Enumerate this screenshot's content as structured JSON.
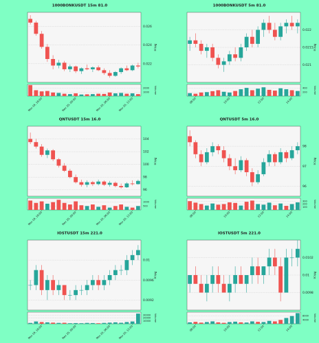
{
  "chart_data": [
    {
      "type": "candlestick",
      "title": "1000BONKUSDT 15m 81.0",
      "y_label": "Price",
      "volume_label": "Volume",
      "up_color": "#26a69a",
      "down_color": "#ef5350",
      "grid": true,
      "categories": [
        null,
        null,
        "Nov 19, 18:00",
        null,
        null,
        null,
        null,
        null,
        "Nov 20, 00:00",
        null,
        null,
        null,
        null,
        null,
        "Nov 20, 06:00",
        null,
        null,
        null,
        "Nov 20, 12:00",
        null
      ],
      "open": [
        0.0268,
        0.0264,
        0.0252,
        0.0238,
        0.0225,
        0.0218,
        0.0221,
        0.0214,
        0.0217,
        0.0212,
        0.0215,
        0.0214,
        0.0216,
        0.0213,
        0.021,
        0.0207,
        0.0211,
        0.0215,
        0.0213,
        0.0218
      ],
      "high": [
        0.0272,
        0.0266,
        0.0255,
        0.0241,
        0.0229,
        0.0224,
        0.0223,
        0.0219,
        0.0218,
        0.0216,
        0.0219,
        0.0217,
        0.0218,
        0.0215,
        0.0213,
        0.0212,
        0.0216,
        0.0218,
        0.0219,
        0.0221
      ],
      "low": [
        0.0262,
        0.025,
        0.0236,
        0.0222,
        0.0214,
        0.0215,
        0.0212,
        0.0211,
        0.021,
        0.0209,
        0.0213,
        0.0211,
        0.0212,
        0.0208,
        0.0205,
        0.0206,
        0.0209,
        0.0212,
        0.0212,
        0.0215
      ],
      "close": [
        0.0264,
        0.0252,
        0.0238,
        0.0225,
        0.0218,
        0.0221,
        0.0214,
        0.0217,
        0.0212,
        0.0215,
        0.0214,
        0.0216,
        0.0213,
        0.021,
        0.0207,
        0.0211,
        0.0215,
        0.0213,
        0.0218,
        0.0217
      ],
      "volume": [
        2800,
        1500,
        1200,
        1300,
        900,
        800,
        600,
        500,
        700,
        400,
        450,
        500,
        600,
        550,
        900,
        700,
        800,
        600,
        700,
        500
      ],
      "ylim": [
        0.02,
        0.0275
      ],
      "yticks": [
        0.022,
        0.024,
        0.026
      ],
      "volume_ylim": [
        0,
        3000
      ],
      "volume_yticks": [
        1000,
        2000
      ]
    },
    {
      "type": "candlestick",
      "title": "1000BONKUSDT 5m 81.0",
      "y_label": "Price",
      "volume_label": "Volume",
      "up_color": "#26a69a",
      "down_color": "#ef5350",
      "grid": true,
      "categories": [
        null,
        "08:00",
        null,
        null,
        null,
        null,
        null,
        "10:00",
        null,
        null,
        null,
        null,
        null,
        "12:00",
        null,
        null,
        null,
        null,
        "14:00",
        null
      ],
      "open": [
        0.0216,
        0.0217,
        0.0216,
        0.0214,
        0.0215,
        0.0212,
        0.021,
        0.0211,
        0.0213,
        0.0212,
        0.0215,
        0.0218,
        0.0216,
        0.022,
        0.0222,
        0.022,
        0.0218,
        0.0221,
        0.0222,
        0.0221
      ],
      "high": [
        0.0218,
        0.0219,
        0.0217,
        0.0216,
        0.0216,
        0.0213,
        0.0212,
        0.0214,
        0.0215,
        0.0216,
        0.0219,
        0.022,
        0.0221,
        0.0223,
        0.0224,
        0.0222,
        0.0222,
        0.0223,
        0.0224,
        0.0223
      ],
      "low": [
        0.0214,
        0.0215,
        0.0213,
        0.0212,
        0.0211,
        0.0209,
        0.0208,
        0.021,
        0.0211,
        0.0211,
        0.0214,
        0.0215,
        0.0215,
        0.0218,
        0.0219,
        0.0217,
        0.0217,
        0.0219,
        0.022,
        0.0219
      ],
      "close": [
        0.0217,
        0.0216,
        0.0214,
        0.0215,
        0.0212,
        0.021,
        0.0211,
        0.0213,
        0.0212,
        0.0215,
        0.0218,
        0.0216,
        0.022,
        0.0222,
        0.022,
        0.0218,
        0.0221,
        0.0222,
        0.0221,
        0.0222
      ],
      "volume": [
        150,
        120,
        180,
        200,
        250,
        300,
        220,
        180,
        260,
        350,
        420,
        300,
        380,
        450,
        320,
        280,
        400,
        350,
        300,
        260
      ],
      "ylim": [
        0.0205,
        0.0225
      ],
      "yticks": [
        0.021,
        0.0215,
        0.022
      ],
      "volume_ylim": [
        0,
        600
      ],
      "volume_yticks": [
        200,
        400
      ]
    },
    {
      "type": "candlestick",
      "title": "QNTUSDT 15m 16.0",
      "y_label": "Price",
      "volume_label": "Volume",
      "up_color": "#26a69a",
      "down_color": "#ef5350",
      "grid": true,
      "categories": [
        null,
        null,
        "Nov 19, 18:00",
        null,
        null,
        null,
        null,
        null,
        "Nov 20, 00:00",
        null,
        null,
        null,
        null,
        null,
        "Nov 20, 06:00",
        null,
        null,
        null,
        "Nov 20, 12:00",
        null
      ],
      "open": [
        104,
        103.5,
        102.8,
        101.5,
        102.2,
        100.8,
        99.8,
        99,
        98,
        97.2,
        96.8,
        97.2,
        96.9,
        97.3,
        96.8,
        97.1,
        96.6,
        96.4,
        97,
        96.9
      ],
      "high": [
        105,
        104,
        103.2,
        102.5,
        102.4,
        101,
        100.2,
        99.3,
        98.4,
        97.6,
        97.5,
        97.4,
        97.6,
        97.5,
        97.4,
        97.3,
        97,
        97.2,
        97.5,
        97.6
      ],
      "low": [
        103.2,
        102.5,
        101.2,
        101,
        100.5,
        99.5,
        98.8,
        97.8,
        97,
        96.5,
        96.4,
        96.6,
        96.7,
        96.6,
        96.5,
        96.4,
        96.2,
        96.3,
        96.7,
        96.8
      ],
      "close": [
        103.5,
        102.8,
        101.5,
        102.2,
        100.8,
        99.8,
        99,
        98,
        97.2,
        96.8,
        97.2,
        96.9,
        97.3,
        96.8,
        97.1,
        96.6,
        96.4,
        97,
        96.9,
        97.4
      ],
      "volume": [
        1200,
        900,
        1100,
        800,
        1000,
        1300,
        900,
        700,
        1100,
        600,
        500,
        700,
        400,
        600,
        300,
        500,
        700,
        400,
        300,
        500
      ],
      "ylim": [
        95,
        106
      ],
      "yticks": [
        96,
        98,
        100,
        102,
        104
      ],
      "volume_ylim": [
        0,
        1500
      ],
      "volume_yticks": [
        500,
        1000
      ]
    },
    {
      "type": "candlestick",
      "title": "QNTUSDT 5m 16.0",
      "y_label": "Price",
      "volume_label": "Volume",
      "up_color": "#26a69a",
      "down_color": "#ef5350",
      "grid": true,
      "categories": [
        null,
        "08:00",
        null,
        null,
        null,
        null,
        null,
        "10:00",
        null,
        null,
        null,
        null,
        null,
        "12:00",
        null,
        null,
        null,
        null,
        "14:00",
        null
      ],
      "open": [
        98.5,
        98.2,
        97.6,
        97.2,
        97.7,
        98,
        97.8,
        97.4,
        97,
        96.8,
        97.3,
        96.7,
        96.2,
        96.6,
        97.2,
        97.6,
        97.2,
        97.7,
        97.4,
        97.8
      ],
      "high": [
        98.8,
        98.3,
        97.8,
        97.9,
        98.2,
        98.1,
        98,
        97.6,
        97.4,
        97.5,
        97.4,
        96.9,
        96.8,
        97.4,
        97.8,
        97.7,
        97.9,
        97.8,
        98,
        98.2
      ],
      "low": [
        98,
        97.4,
        97,
        97.1,
        97.5,
        97.6,
        97.2,
        96.8,
        96.6,
        96.7,
        96.5,
        96,
        96.1,
        96.5,
        97,
        97,
        97.1,
        97.2,
        97.3,
        97.6
      ],
      "close": [
        98.2,
        97.6,
        97.2,
        97.7,
        98,
        97.8,
        97.4,
        97,
        96.8,
        97.3,
        96.7,
        96.2,
        96.6,
        97.2,
        97.6,
        97.2,
        97.7,
        97.4,
        97.8,
        98
      ],
      "volume": [
        300,
        250,
        200,
        150,
        220,
        180,
        200,
        260,
        240,
        150,
        280,
        320,
        200,
        180,
        250,
        160,
        220,
        140,
        200,
        260
      ],
      "ylim": [
        95.5,
        99
      ],
      "yticks": [
        96,
        97,
        98
      ],
      "volume_ylim": [
        0,
        400
      ],
      "volume_yticks": [
        100,
        200,
        300
      ]
    },
    {
      "type": "candlestick",
      "title": "IOSTUSDT 15m 221.0",
      "y_label": "Price",
      "volume_label": "Volume",
      "up_color": "#26a69a",
      "down_color": "#ef5350",
      "grid": true,
      "categories": [
        null,
        null,
        "Nov 19, 18:00",
        null,
        null,
        null,
        null,
        null,
        "Nov 20, 00:00",
        null,
        null,
        null,
        null,
        null,
        "Nov 20, 06:00",
        null,
        null,
        null,
        "Nov 20, 12:00",
        null
      ],
      "open": [
        0.0095,
        0.0095,
        0.0098,
        0.0094,
        0.0096,
        0.0094,
        0.0095,
        0.0093,
        0.0093,
        0.0094,
        0.0094,
        0.0095,
        0.0096,
        0.0095,
        0.0096,
        0.0097,
        0.0098,
        0.0098,
        0.01,
        0.0101
      ],
      "high": [
        0.0096,
        0.0099,
        0.0099,
        0.0097,
        0.0097,
        0.0096,
        0.0095,
        0.0094,
        0.0095,
        0.0095,
        0.0096,
        0.0097,
        0.0097,
        0.0097,
        0.0098,
        0.0099,
        0.0099,
        0.0101,
        0.0102,
        0.0103
      ],
      "low": [
        0.0094,
        0.0094,
        0.0093,
        0.0092,
        0.0093,
        0.0093,
        0.0092,
        0.0092,
        0.0092,
        0.0093,
        0.0093,
        0.0094,
        0.0094,
        0.0094,
        0.0095,
        0.0096,
        0.0097,
        0.0097,
        0.0099,
        0.01
      ],
      "close": [
        0.0095,
        0.0098,
        0.0094,
        0.0096,
        0.0094,
        0.0095,
        0.0093,
        0.0093,
        0.0094,
        0.0094,
        0.0095,
        0.0096,
        0.0095,
        0.0096,
        0.0097,
        0.0098,
        0.0098,
        0.01,
        0.0101,
        0.0102
      ],
      "volume": [
        3000,
        8000,
        6000,
        5000,
        4000,
        3000,
        3500,
        2000,
        2500,
        2000,
        3000,
        2500,
        2000,
        3000,
        4000,
        5000,
        3500,
        6000,
        8000,
        35000
      ],
      "ylim": [
        0.009,
        0.0104
      ],
      "yticks": [
        0.0092,
        0.0096,
        0.01
      ],
      "volume_ylim": [
        0,
        40000
      ],
      "volume_yticks": [
        10000,
        20000,
        30000
      ]
    },
    {
      "type": "candlestick",
      "title": "IOSTUSDT 5m 221.0",
      "y_label": "Price",
      "volume_label": "Volume",
      "up_color": "#26a69a",
      "down_color": "#ef5350",
      "grid": true,
      "categories": [
        null,
        "08:00",
        null,
        null,
        null,
        null,
        null,
        "10:00",
        null,
        null,
        null,
        null,
        null,
        "12:00",
        null,
        null,
        null,
        null,
        "14:00",
        null
      ],
      "open": [
        0.0099,
        0.01,
        0.0099,
        0.0098,
        0.0099,
        0.01,
        0.0099,
        0.0098,
        0.0099,
        0.01,
        0.0099,
        0.01,
        0.0101,
        0.01,
        0.0101,
        0.0102,
        0.0101,
        0.0098,
        0.0102,
        0.0102
      ],
      "high": [
        0.01,
        0.0101,
        0.01,
        0.01,
        0.0101,
        0.0101,
        0.01,
        0.01,
        0.0101,
        0.0101,
        0.01,
        0.0102,
        0.0102,
        0.0101,
        0.0103,
        0.0103,
        0.0102,
        0.0103,
        0.0103,
        0.0104
      ],
      "low": [
        0.0098,
        0.0099,
        0.0098,
        0.0097,
        0.0098,
        0.0098,
        0.0098,
        0.0097,
        0.0098,
        0.0099,
        0.0098,
        0.0099,
        0.0099,
        0.0099,
        0.01,
        0.01,
        0.0097,
        0.0098,
        0.0101,
        0.0101
      ],
      "close": [
        0.01,
        0.0099,
        0.0098,
        0.0099,
        0.01,
        0.0099,
        0.0098,
        0.0099,
        0.01,
        0.0099,
        0.01,
        0.0101,
        0.01,
        0.0101,
        0.0102,
        0.0101,
        0.0098,
        0.0102,
        0.0102,
        0.0103
      ],
      "volume": [
        1500,
        2000,
        1200,
        1800,
        2500,
        1500,
        1000,
        1800,
        2200,
        1500,
        1300,
        2500,
        2000,
        1800,
        3000,
        2500,
        4000,
        6000,
        8000,
        11000
      ],
      "ylim": [
        0.0096,
        0.0104
      ],
      "yticks": [
        0.0098,
        0.01,
        0.0102
      ],
      "volume_ylim": [
        0,
        12000
      ],
      "volume_yticks": [
        4000,
        8000
      ]
    }
  ]
}
